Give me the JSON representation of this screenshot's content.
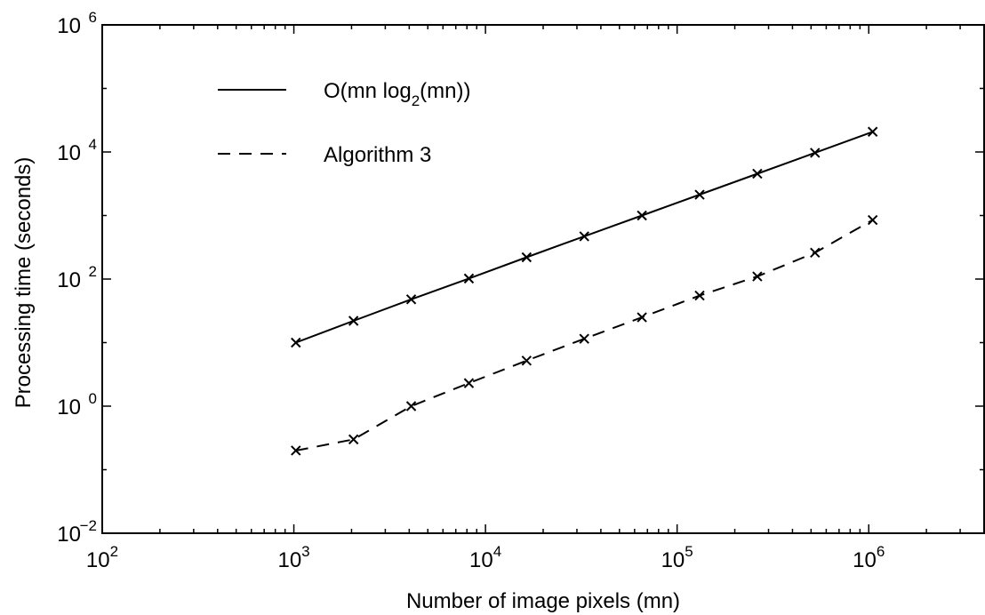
{
  "chart_data": {
    "type": "line",
    "xlabel": "Number of image pixels (mn)",
    "ylabel": "Processing time (seconds)",
    "x_scale": "log",
    "y_scale": "log",
    "xlim": [
      100,
      4000000
    ],
    "ylim": [
      0.01,
      1000000
    ],
    "x_ticks": [
      {
        "base": "10",
        "exp": "2",
        "value": 100
      },
      {
        "base": "10",
        "exp": "3",
        "value": 1000
      },
      {
        "base": "10",
        "exp": "4",
        "value": 10000
      },
      {
        "base": "10",
        "exp": "5",
        "value": 100000
      },
      {
        "base": "10",
        "exp": "6",
        "value": 1000000
      }
    ],
    "y_ticks": [
      {
        "base": "10",
        "exp": "−2",
        "value": 0.01
      },
      {
        "base": "10",
        "exp": "0",
        "value": 1
      },
      {
        "base": "10",
        "exp": "2",
        "value": 100
      },
      {
        "base": "10",
        "exp": "4",
        "value": 10000
      },
      {
        "base": "10",
        "exp": "6",
        "value": 1000000
      }
    ],
    "grid": false,
    "legend_position": "top-left",
    "series": [
      {
        "name_parts": {
          "pre": "O(mn log",
          "sub": "2",
          "post": "(mn))"
        },
        "line_style": "solid",
        "marker": "x",
        "color": "#000000",
        "x": [
          1024,
          2048,
          4096,
          8192,
          16384,
          32768,
          65536,
          131072,
          262144,
          524288,
          1048576
        ],
        "y": [
          10,
          22,
          48,
          102,
          220,
          470,
          1000,
          2130,
          4550,
          9700,
          20800
        ]
      },
      {
        "name_parts": {
          "pre": "Algorithm 3",
          "sub": "",
          "post": ""
        },
        "line_style": "dashed",
        "marker": "x",
        "color": "#000000",
        "x": [
          1024,
          2048,
          4096,
          8192,
          16384,
          32768,
          65536,
          131072,
          262144,
          524288,
          1048576
        ],
        "y": [
          0.2,
          0.3,
          1.0,
          2.3,
          5.2,
          11.5,
          25,
          55,
          110,
          260,
          850
        ]
      }
    ]
  }
}
